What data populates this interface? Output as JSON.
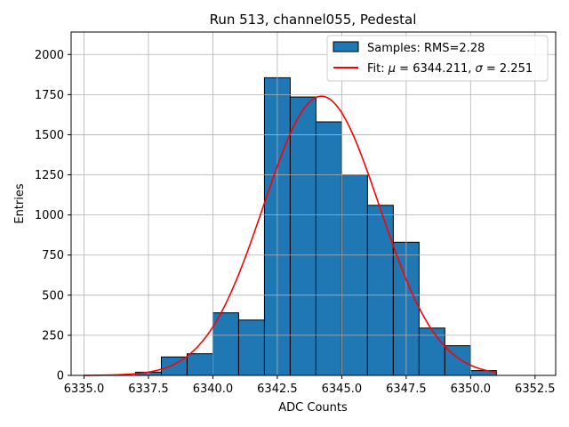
{
  "chart_data": {
    "type": "bar",
    "title": "Run 513, channel055, Pedestal",
    "xlabel": "ADC Counts",
    "ylabel": "Entries",
    "xlim": [
      6334.5,
      6353.3
    ],
    "ylim": [
      0,
      2140
    ],
    "xticks": [
      6335.0,
      6337.5,
      6340.0,
      6342.5,
      6345.0,
      6347.5,
      6350.0,
      6352.5
    ],
    "xtick_labels": [
      "6335.0",
      "6337.5",
      "6340.0",
      "6342.5",
      "6345.0",
      "6347.5",
      "6350.0",
      "6352.5"
    ],
    "yticks": [
      0,
      250,
      500,
      750,
      1000,
      1250,
      1500,
      1750,
      2000
    ],
    "ytick_labels": [
      "0",
      "250",
      "500",
      "750",
      "1000",
      "1250",
      "1500",
      "1750",
      "2000"
    ],
    "grid": true,
    "legend_position": "top-right",
    "histogram": {
      "name": "Samples: RMS=2.28",
      "color": "#1f77b4",
      "edge_color": "#000000",
      "bin_edges": [
        6335.0,
        6336.0,
        6337.0,
        6338.0,
        6339.0,
        6340.0,
        6341.0,
        6342.0,
        6343.0,
        6344.0,
        6345.0,
        6346.0,
        6347.0,
        6348.0,
        6349.0,
        6350.0,
        6351.0
      ],
      "counts": [
        0,
        0,
        20,
        115,
        135,
        390,
        345,
        1855,
        1735,
        1580,
        1250,
        1060,
        830,
        295,
        185,
        30
      ]
    },
    "fit": {
      "name_prefix": "Fit: ",
      "name_mu": "μ",
      "name_mid": " = 6344.211, ",
      "name_sigma": "σ",
      "name_suffix": " = 2.251",
      "color": "#ff0000",
      "mu": 6344.211,
      "sigma": 2.251,
      "amplitude": 1740,
      "x_range": [
        6335.0,
        6351.0
      ]
    }
  }
}
